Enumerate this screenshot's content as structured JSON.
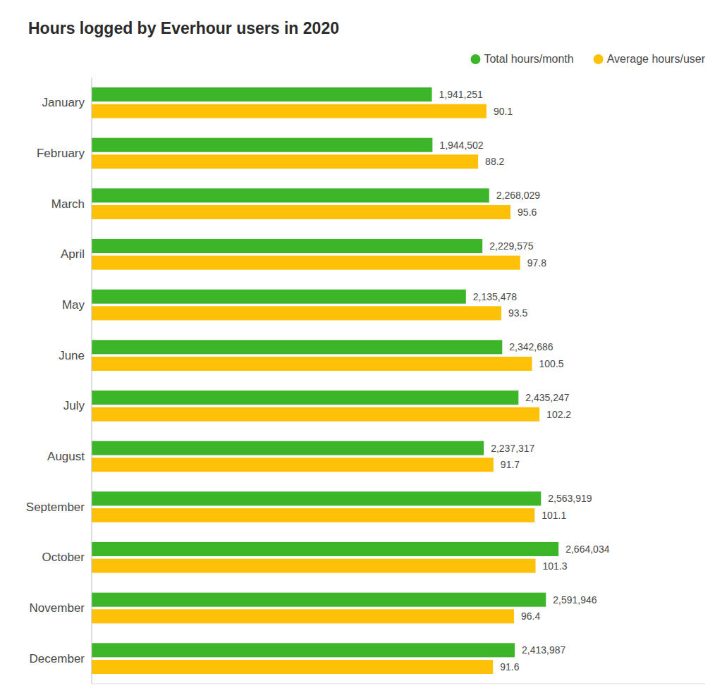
{
  "chart_data": {
    "type": "bar",
    "orientation": "horizontal",
    "title": "Hours logged by Everhour users in 2020",
    "categories": [
      "January",
      "February",
      "March",
      "April",
      "May",
      "June",
      "July",
      "August",
      "September",
      "October",
      "November",
      "December"
    ],
    "series": [
      {
        "name": "Total hours/month",
        "color": "#3CB528",
        "values": [
          1941251,
          1944502,
          2268029,
          2229575,
          2135478,
          2342686,
          2435247,
          2237317,
          2563919,
          2664034,
          2591946,
          2413987
        ],
        "value_labels": [
          "1,941,251",
          "1,944,502",
          "2,268,029",
          "2,229,575",
          "2,135,478",
          "2,342,686",
          "2,435,247",
          "2,237,317",
          "2,563,919",
          "2,664,034",
          "2,591,946",
          "2,413,987"
        ]
      },
      {
        "name": "Average hours/user",
        "color": "#FFC107",
        "axis": "y2",
        "values": [
          90.1,
          88.2,
          95.6,
          97.8,
          93.5,
          100.5,
          102.2,
          91.7,
          101.1,
          101.3,
          96.4,
          91.6
        ]
      }
    ],
    "ylim": [
      0,
      3500000
    ],
    "y2lim": [
      0,
      140
    ],
    "data_labels": true,
    "tick_labels": false,
    "grid": false,
    "legend": "upper right"
  }
}
